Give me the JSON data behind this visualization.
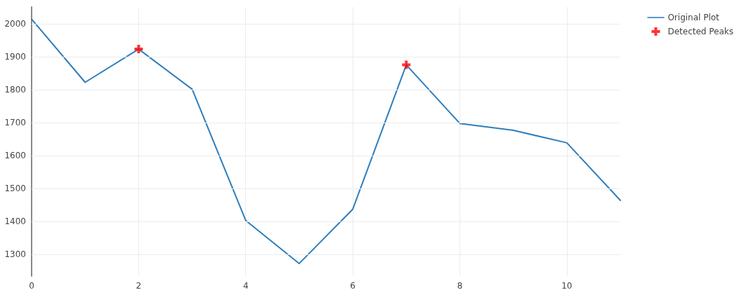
{
  "chart_data": {
    "type": "line",
    "x": [
      0,
      1,
      2,
      3,
      4,
      5,
      6,
      7,
      8,
      9,
      10,
      11
    ],
    "series": [
      {
        "name": "Original Plot",
        "color": "#2e7ebc",
        "values": [
          2015,
          1823,
          1924,
          1802,
          1403,
          1272,
          1437,
          1876,
          1698,
          1677,
          1639,
          1464
        ],
        "marker": "none"
      },
      {
        "name": "Detected Peaks",
        "type": "scatter",
        "color": "#ff0000",
        "x": [
          2,
          7
        ],
        "values": [
          1924,
          1876
        ],
        "marker": "cross"
      }
    ],
    "xlim": [
      0,
      11
    ],
    "xticks": [
      0,
      2,
      4,
      6,
      8,
      10
    ],
    "ylim": [
      1234,
      2052
    ],
    "yticks": [
      1300,
      1400,
      1500,
      1600,
      1700,
      1800,
      1900,
      2000
    ],
    "grid": true,
    "legend": "top right"
  }
}
